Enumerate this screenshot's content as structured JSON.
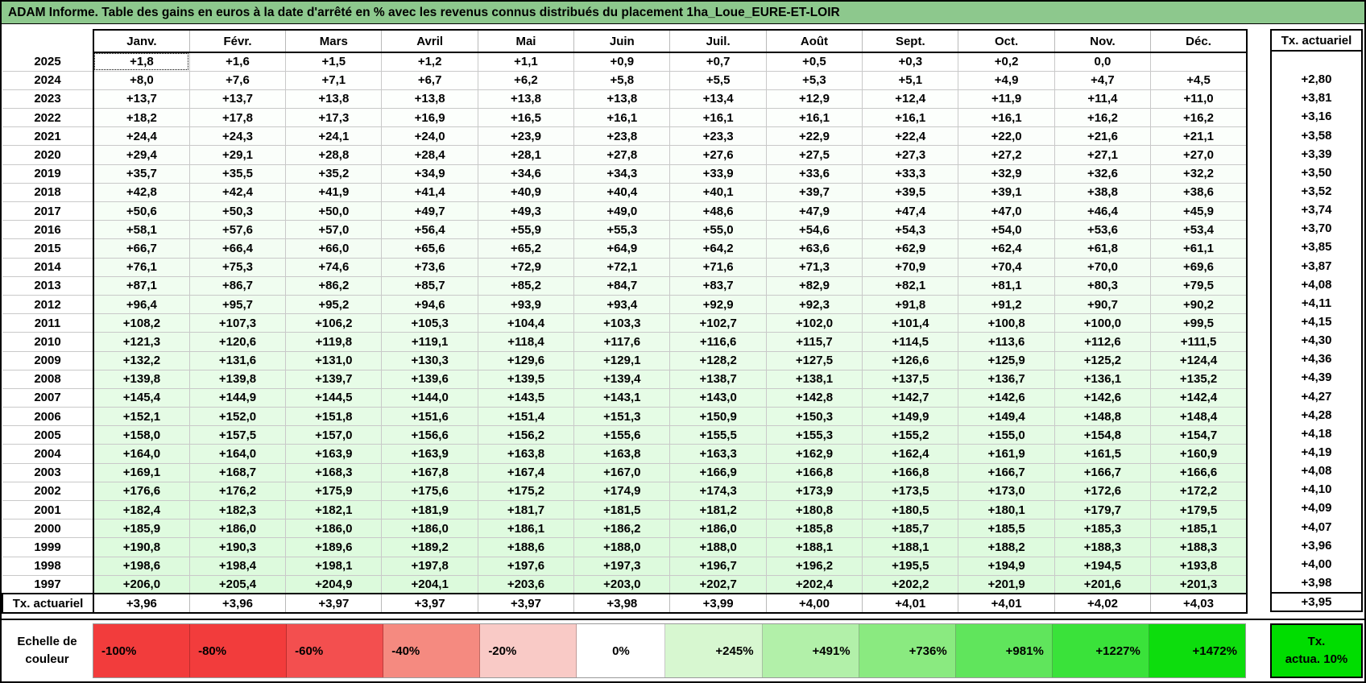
{
  "title": "ADAM Informe. Table des gains en euros à la date d'arrêté en % avec les revenus connus distribués du placement 1ha_Loue_EURE-ET-LOIR",
  "months": [
    "Janv.",
    "Févr.",
    "Mars",
    "Avril",
    "Mai",
    "Juin",
    "Juil.",
    "Août",
    "Sept.",
    "Oct.",
    "Nov.",
    "Déc."
  ],
  "tx_column_header": "Tx. actuariel",
  "rows": [
    {
      "year": "2025",
      "values": [
        "+1,8",
        "+1,6",
        "+1,5",
        "+1,2",
        "+1,1",
        "+0,9",
        "+0,7",
        "+0,5",
        "+0,3",
        "+0,2",
        "0,0",
        ""
      ],
      "tx": ""
    },
    {
      "year": "2024",
      "values": [
        "+8,0",
        "+7,6",
        "+7,1",
        "+6,7",
        "+6,2",
        "+5,8",
        "+5,5",
        "+5,3",
        "+5,1",
        "+4,9",
        "+4,7",
        "+4,5"
      ],
      "tx": "+2,80"
    },
    {
      "year": "2023",
      "values": [
        "+13,7",
        "+13,7",
        "+13,8",
        "+13,8",
        "+13,8",
        "+13,8",
        "+13,4",
        "+12,9",
        "+12,4",
        "+11,9",
        "+11,4",
        "+11,0"
      ],
      "tx": "+3,81"
    },
    {
      "year": "2022",
      "values": [
        "+18,2",
        "+17,8",
        "+17,3",
        "+16,9",
        "+16,5",
        "+16,1",
        "+16,1",
        "+16,1",
        "+16,1",
        "+16,1",
        "+16,2",
        "+16,2"
      ],
      "tx": "+3,16"
    },
    {
      "year": "2021",
      "values": [
        "+24,4",
        "+24,3",
        "+24,1",
        "+24,0",
        "+23,9",
        "+23,8",
        "+23,3",
        "+22,9",
        "+22,4",
        "+22,0",
        "+21,6",
        "+21,1"
      ],
      "tx": "+3,58"
    },
    {
      "year": "2020",
      "values": [
        "+29,4",
        "+29,1",
        "+28,8",
        "+28,4",
        "+28,1",
        "+27,8",
        "+27,6",
        "+27,5",
        "+27,3",
        "+27,2",
        "+27,1",
        "+27,0"
      ],
      "tx": "+3,39"
    },
    {
      "year": "2019",
      "values": [
        "+35,7",
        "+35,5",
        "+35,2",
        "+34,9",
        "+34,6",
        "+34,3",
        "+33,9",
        "+33,6",
        "+33,3",
        "+32,9",
        "+32,6",
        "+32,2"
      ],
      "tx": "+3,50"
    },
    {
      "year": "2018",
      "values": [
        "+42,8",
        "+42,4",
        "+41,9",
        "+41,4",
        "+40,9",
        "+40,4",
        "+40,1",
        "+39,7",
        "+39,5",
        "+39,1",
        "+38,8",
        "+38,6"
      ],
      "tx": "+3,52"
    },
    {
      "year": "2017",
      "values": [
        "+50,6",
        "+50,3",
        "+50,0",
        "+49,7",
        "+49,3",
        "+49,0",
        "+48,6",
        "+47,9",
        "+47,4",
        "+47,0",
        "+46,4",
        "+45,9"
      ],
      "tx": "+3,74"
    },
    {
      "year": "2016",
      "values": [
        "+58,1",
        "+57,6",
        "+57,0",
        "+56,4",
        "+55,9",
        "+55,3",
        "+55,0",
        "+54,6",
        "+54,3",
        "+54,0",
        "+53,6",
        "+53,4"
      ],
      "tx": "+3,70"
    },
    {
      "year": "2015",
      "values": [
        "+66,7",
        "+66,4",
        "+66,0",
        "+65,6",
        "+65,2",
        "+64,9",
        "+64,2",
        "+63,6",
        "+62,9",
        "+62,4",
        "+61,8",
        "+61,1"
      ],
      "tx": "+3,85"
    },
    {
      "year": "2014",
      "values": [
        "+76,1",
        "+75,3",
        "+74,6",
        "+73,6",
        "+72,9",
        "+72,1",
        "+71,6",
        "+71,3",
        "+70,9",
        "+70,4",
        "+70,0",
        "+69,6"
      ],
      "tx": "+3,87"
    },
    {
      "year": "2013",
      "values": [
        "+87,1",
        "+86,7",
        "+86,2",
        "+85,7",
        "+85,2",
        "+84,7",
        "+83,7",
        "+82,9",
        "+82,1",
        "+81,1",
        "+80,3",
        "+79,5"
      ],
      "tx": "+4,08"
    },
    {
      "year": "2012",
      "values": [
        "+96,4",
        "+95,7",
        "+95,2",
        "+94,6",
        "+93,9",
        "+93,4",
        "+92,9",
        "+92,3",
        "+91,8",
        "+91,2",
        "+90,7",
        "+90,2"
      ],
      "tx": "+4,11"
    },
    {
      "year": "2011",
      "values": [
        "+108,2",
        "+107,3",
        "+106,2",
        "+105,3",
        "+104,4",
        "+103,3",
        "+102,7",
        "+102,0",
        "+101,4",
        "+100,8",
        "+100,0",
        "+99,5"
      ],
      "tx": "+4,15"
    },
    {
      "year": "2010",
      "values": [
        "+121,3",
        "+120,6",
        "+119,8",
        "+119,1",
        "+118,4",
        "+117,6",
        "+116,6",
        "+115,7",
        "+114,5",
        "+113,6",
        "+112,6",
        "+111,5"
      ],
      "tx": "+4,30"
    },
    {
      "year": "2009",
      "values": [
        "+132,2",
        "+131,6",
        "+131,0",
        "+130,3",
        "+129,6",
        "+129,1",
        "+128,2",
        "+127,5",
        "+126,6",
        "+125,9",
        "+125,2",
        "+124,4"
      ],
      "tx": "+4,36"
    },
    {
      "year": "2008",
      "values": [
        "+139,8",
        "+139,8",
        "+139,7",
        "+139,6",
        "+139,5",
        "+139,4",
        "+138,7",
        "+138,1",
        "+137,5",
        "+136,7",
        "+136,1",
        "+135,2"
      ],
      "tx": "+4,39"
    },
    {
      "year": "2007",
      "values": [
        "+145,4",
        "+144,9",
        "+144,5",
        "+144,0",
        "+143,5",
        "+143,1",
        "+143,0",
        "+142,8",
        "+142,7",
        "+142,6",
        "+142,6",
        "+142,4"
      ],
      "tx": "+4,27"
    },
    {
      "year": "2006",
      "values": [
        "+152,1",
        "+152,0",
        "+151,8",
        "+151,6",
        "+151,4",
        "+151,3",
        "+150,9",
        "+150,3",
        "+149,9",
        "+149,4",
        "+148,8",
        "+148,4"
      ],
      "tx": "+4,28"
    },
    {
      "year": "2005",
      "values": [
        "+158,0",
        "+157,5",
        "+157,0",
        "+156,6",
        "+156,2",
        "+155,6",
        "+155,5",
        "+155,3",
        "+155,2",
        "+155,0",
        "+154,8",
        "+154,7"
      ],
      "tx": "+4,18"
    },
    {
      "year": "2004",
      "values": [
        "+164,0",
        "+164,0",
        "+163,9",
        "+163,9",
        "+163,8",
        "+163,8",
        "+163,3",
        "+162,9",
        "+162,4",
        "+161,9",
        "+161,5",
        "+160,9"
      ],
      "tx": "+4,19"
    },
    {
      "year": "2003",
      "values": [
        "+169,1",
        "+168,7",
        "+168,3",
        "+167,8",
        "+167,4",
        "+167,0",
        "+166,9",
        "+166,8",
        "+166,8",
        "+166,7",
        "+166,7",
        "+166,6"
      ],
      "tx": "+4,08"
    },
    {
      "year": "2002",
      "values": [
        "+176,6",
        "+176,2",
        "+175,9",
        "+175,6",
        "+175,2",
        "+174,9",
        "+174,3",
        "+173,9",
        "+173,5",
        "+173,0",
        "+172,6",
        "+172,2"
      ],
      "tx": "+4,10"
    },
    {
      "year": "2001",
      "values": [
        "+182,4",
        "+182,3",
        "+182,1",
        "+181,9",
        "+181,7",
        "+181,5",
        "+181,2",
        "+180,8",
        "+180,5",
        "+180,1",
        "+179,7",
        "+179,5"
      ],
      "tx": "+4,09"
    },
    {
      "year": "2000",
      "values": [
        "+185,9",
        "+186,0",
        "+186,0",
        "+186,0",
        "+186,1",
        "+186,2",
        "+186,0",
        "+185,8",
        "+185,7",
        "+185,5",
        "+185,3",
        "+185,1"
      ],
      "tx": "+4,07"
    },
    {
      "year": "1999",
      "values": [
        "+190,8",
        "+190,3",
        "+189,6",
        "+189,2",
        "+188,6",
        "+188,0",
        "+188,0",
        "+188,1",
        "+188,1",
        "+188,2",
        "+188,3",
        "+188,3"
      ],
      "tx": "+3,96"
    },
    {
      "year": "1998",
      "values": [
        "+198,6",
        "+198,4",
        "+198,1",
        "+197,8",
        "+197,6",
        "+197,3",
        "+196,7",
        "+196,2",
        "+195,5",
        "+194,9",
        "+194,5",
        "+193,8"
      ],
      "tx": "+4,00"
    },
    {
      "year": "1997",
      "values": [
        "+206,0",
        "+205,4",
        "+204,9",
        "+204,1",
        "+203,6",
        "+203,0",
        "+202,7",
        "+202,4",
        "+202,2",
        "+201,9",
        "+201,6",
        "+201,3"
      ],
      "tx": "+3,98"
    }
  ],
  "tx_row": {
    "label": "Tx. actuariel",
    "values": [
      "+3,96",
      "+3,96",
      "+3,97",
      "+3,97",
      "+3,97",
      "+3,98",
      "+3,99",
      "+4,00",
      "+4,01",
      "+4,01",
      "+4,02",
      "+4,03"
    ],
    "tx": "+3,95"
  },
  "legend": {
    "label_line1": "Echelle de",
    "label_line2": "couleur",
    "stops": [
      {
        "label": "-100%",
        "color": "#f23c3c",
        "align": "left"
      },
      {
        "label": "-80%",
        "color": "#f23c3c",
        "align": "left"
      },
      {
        "label": "-60%",
        "color": "#f34f4f",
        "align": "left"
      },
      {
        "label": "-40%",
        "color": "#f58a80",
        "align": "left"
      },
      {
        "label": "-20%",
        "color": "#f9cac6",
        "align": "left"
      },
      {
        "label": "0%",
        "color": "#ffffff",
        "align": "center"
      },
      {
        "label": "+245%",
        "color": "#d7f7d0",
        "align": "right"
      },
      {
        "label": "+491%",
        "color": "#b2f0a9",
        "align": "right"
      },
      {
        "label": "+736%",
        "color": "#8aea80",
        "align": "right"
      },
      {
        "label": "+981%",
        "color": "#60e55c",
        "align": "right"
      },
      {
        "label": "+1227%",
        "color": "#3ae23a",
        "align": "right"
      },
      {
        "label": "+1472%",
        "color": "#0ddd0d",
        "align": "right"
      }
    ],
    "tx_line1": "Tx.",
    "tx_line2": "actua. 10%"
  },
  "colors": {
    "title_bg": "#8dc88d",
    "legend_tx_bg": "#00dd00",
    "cell_scale_zero": "#ffffff",
    "cell_scale_max": "#00dd00",
    "cell_scale_max_value": 1472
  }
}
